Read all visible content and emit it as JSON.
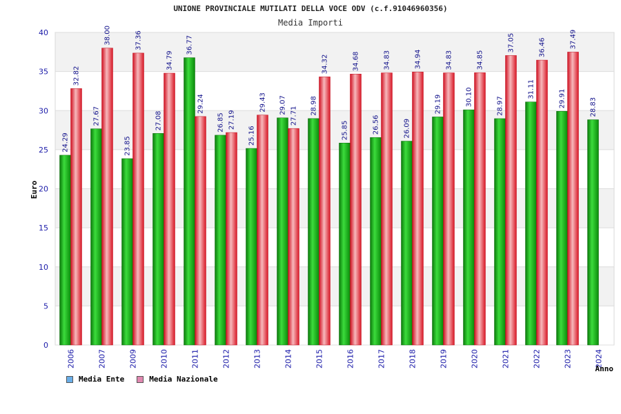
{
  "title": "UNIONE PROVINCIALE MUTILATI DELLA VOCE ODV (c.f.91046960356)",
  "subtitle": "Media Importi",
  "colors": {
    "ente": "#18a518",
    "nazionale": "#e8303a",
    "ente_legend": "#6aaee8",
    "nazionale_legend": "#e088b0",
    "axis_text": "#1a1aa8"
  },
  "legend": [
    {
      "label": "Media Ente",
      "color": "#6aaee8"
    },
    {
      "label": "Media Nazionale",
      "color": "#e088b0"
    }
  ],
  "chart_data": {
    "type": "bar",
    "title": "UNIONE PROVINCIALE MUTILATI DELLA VOCE ODV (c.f.91046960356)",
    "subtitle": "Media Importi",
    "xlabel": "Anno",
    "ylabel": "Euro",
    "ylim": [
      0,
      40
    ],
    "yticks": [
      0,
      5,
      10,
      15,
      20,
      25,
      30,
      35,
      40
    ],
    "grid": true,
    "legend_position": "bottom-left",
    "categories": [
      "2006",
      "2007",
      "2009",
      "2010",
      "2011",
      "2012",
      "2013",
      "2014",
      "2015",
      "2016",
      "2017",
      "2018",
      "2019",
      "2020",
      "2021",
      "2022",
      "2023",
      "2024"
    ],
    "series": [
      {
        "name": "Media Ente",
        "values": [
          24.29,
          27.67,
          23.85,
          27.08,
          36.77,
          26.85,
          25.16,
          29.07,
          28.98,
          25.85,
          26.56,
          26.09,
          29.19,
          30.1,
          28.97,
          31.11,
          29.91,
          28.83
        ],
        "labels": [
          "24.29",
          "27.67",
          "23.85",
          "27.08",
          "36.77",
          "26.85",
          "25.16",
          "29.07",
          "28.98",
          "25.85",
          "26.56",
          "26.09",
          "29.19",
          "30.10",
          "28.97",
          "31.11",
          "29.91",
          "28.83"
        ]
      },
      {
        "name": "Media Nazionale",
        "values": [
          32.82,
          38.0,
          37.36,
          34.79,
          29.24,
          27.19,
          29.43,
          27.71,
          34.32,
          34.68,
          34.83,
          34.94,
          34.83,
          34.85,
          37.05,
          36.46,
          37.49,
          null
        ],
        "labels": [
          "32.82",
          "38.00",
          "37.36",
          "34.79",
          "29.24",
          "27.19",
          "29.43",
          "27.71",
          "34.32",
          "34.68",
          "34.83",
          "34.94",
          "34.83",
          "34.85",
          "37.05",
          "36.46",
          "37.49",
          ""
        ]
      }
    ]
  }
}
